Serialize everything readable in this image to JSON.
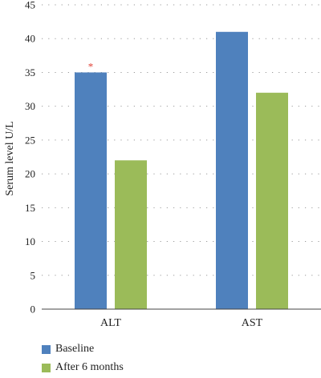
{
  "chart_data": {
    "type": "bar",
    "categories": [
      "ALT",
      "AST"
    ],
    "series": [
      {
        "name": "Baseline",
        "values": [
          35,
          41
        ],
        "color": "#4f81bd"
      },
      {
        "name": "After 6 months",
        "values": [
          22,
          32
        ],
        "color": "#9bbb59"
      }
    ],
    "ylabel": "Serum level U/L",
    "xlabel": "",
    "ylim": [
      0,
      45
    ],
    "yticks": [
      0,
      5,
      10,
      15,
      20,
      25,
      30,
      35,
      40,
      45
    ],
    "grid": true,
    "legend": "bottom-left",
    "annotations": [
      {
        "text": "*",
        "category": "ALT",
        "series": "Baseline",
        "color": "#e03c31"
      }
    ]
  }
}
